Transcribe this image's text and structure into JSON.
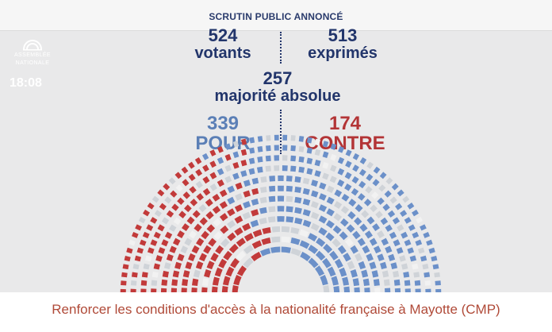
{
  "header": {
    "title": "SCRUTIN PUBLIC ANNONCÉ"
  },
  "logo": {
    "line1": "ASSEMBLÉE",
    "line2": "NATIONALE"
  },
  "clock": "18:08",
  "stats": {
    "votants": {
      "value": "524",
      "label": "votants"
    },
    "exprimes": {
      "value": "513",
      "label": "exprimés"
    },
    "majorite": {
      "value": "257",
      "label": "majorité absolue"
    },
    "pour": {
      "value": "339",
      "label": "POUR"
    },
    "contre": {
      "value": "174",
      "label": "CONTRE"
    }
  },
  "colors": {
    "pour": "#6b90c9",
    "contre": "#c23a3a",
    "abstention": "#f2f2f2",
    "absent": "#cfd3d8"
  },
  "caption": "Renforcer les conditions d'accès à la nationalité française à Mayotte (CMP)"
}
